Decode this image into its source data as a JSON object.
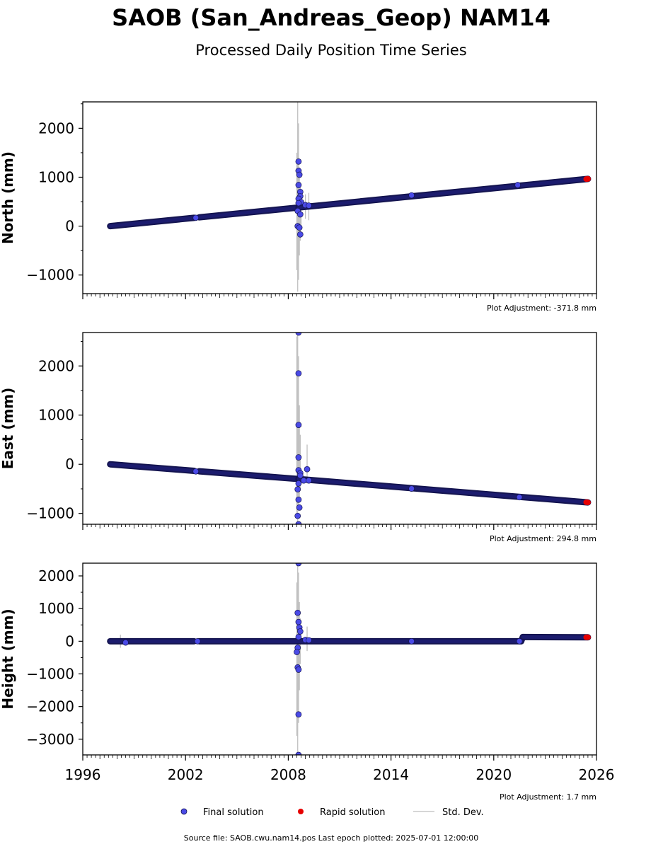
{
  "title": "SAOB (San_Andreas_Geop) NAM14",
  "subtitle": "Processed Daily Position Time Series",
  "legend": {
    "final": "Final solution",
    "rapid": "Rapid solution",
    "std": "Std. Dev."
  },
  "footer": "Source file: SAOB.cwu.nam14.pos  Last epoch plotted: 2025-07-01 12:00:00",
  "colors": {
    "final_fill": "#4a4ae6",
    "final_edge": "#141450",
    "rapid": "#e60000",
    "std": "#b0b0b0",
    "axis": "#000000"
  },
  "chart_data": [
    {
      "type": "scatter",
      "ylabel": "North (mm)",
      "adjustment": "Plot Adjustment: -371.8 mm",
      "xlim": [
        1996,
        2026
      ],
      "ylim": [
        -1380,
        2540
      ],
      "yticks": [
        -1000,
        0,
        1000,
        2000
      ],
      "trend": [
        [
          1997.6,
          0
        ],
        [
          2008.6,
          380
        ],
        [
          2025.5,
          965
        ]
      ],
      "gap": [
        2002.5,
        2002.8
      ],
      "outliers": [
        [
          2002.6,
          170
        ],
        [
          2008.6,
          1320
        ],
        [
          2008.6,
          1130
        ],
        [
          2008.65,
          1050
        ],
        [
          2008.6,
          840
        ],
        [
          2008.7,
          700
        ],
        [
          2008.7,
          610
        ],
        [
          2008.6,
          560
        ],
        [
          2008.75,
          490
        ],
        [
          2008.6,
          470
        ],
        [
          2008.55,
          310
        ],
        [
          2008.7,
          240
        ],
        [
          2008.55,
          0
        ],
        [
          2008.65,
          -30
        ],
        [
          2008.7,
          -170
        ],
        [
          2009.0,
          430
        ],
        [
          2009.2,
          420
        ],
        [
          2015.2,
          630
        ],
        [
          2021.4,
          840
        ]
      ],
      "std_bars": [
        [
          2008.5,
          -900,
          1500
        ],
        [
          2008.55,
          -1340,
          2540
        ],
        [
          2008.6,
          -1100,
          2100
        ],
        [
          2008.65,
          -600,
          1200
        ],
        [
          2008.7,
          -300,
          900
        ],
        [
          2008.75,
          0,
          700
        ],
        [
          2009.0,
          150,
          650
        ],
        [
          2009.2,
          120,
          680
        ]
      ],
      "rapid": [
        [
          2025.4,
          962
        ],
        [
          2025.5,
          965
        ]
      ]
    },
    {
      "type": "scatter",
      "ylabel": "East (mm)",
      "adjustment": "Plot Adjustment: 294.8 mm",
      "xlim": [
        1996,
        2026
      ],
      "ylim": [
        -1220,
        2680
      ],
      "yticks": [
        -1000,
        0,
        1000,
        2000
      ],
      "trend": [
        [
          1997.6,
          0
        ],
        [
          2008.6,
          -300
        ],
        [
          2025.5,
          -775
        ]
      ],
      "gap": [
        2002.5,
        2002.8
      ],
      "outliers": [
        [
          2002.6,
          -145
        ],
        [
          2008.6,
          2680
        ],
        [
          2008.6,
          1850
        ],
        [
          2008.6,
          800
        ],
        [
          2008.6,
          140
        ],
        [
          2008.6,
          -120
        ],
        [
          2008.7,
          -180
        ],
        [
          2008.7,
          -230
        ],
        [
          2008.6,
          -390
        ],
        [
          2008.55,
          -510
        ],
        [
          2008.6,
          -720
        ],
        [
          2008.65,
          -880
        ],
        [
          2008.55,
          -1050
        ],
        [
          2008.6,
          -1220
        ],
        [
          2009.1,
          -100
        ],
        [
          2008.9,
          -330
        ],
        [
          2009.2,
          -330
        ],
        [
          2015.2,
          -495
        ],
        [
          2021.5,
          -670
        ]
      ],
      "std_bars": [
        [
          2008.5,
          -1100,
          2600
        ],
        [
          2008.55,
          -1220,
          2680
        ],
        [
          2008.6,
          -900,
          2200
        ],
        [
          2008.65,
          -700,
          1200
        ],
        [
          2008.7,
          -500,
          600
        ],
        [
          2009.1,
          -300,
          400
        ]
      ],
      "rapid": [
        [
          2025.4,
          -772
        ],
        [
          2025.5,
          -775
        ]
      ]
    },
    {
      "type": "scatter",
      "ylabel": "Height (mm)",
      "adjustment": "Plot Adjustment: 1.7 mm",
      "xlim": [
        1996,
        2026
      ],
      "ylim": [
        -3480,
        2390
      ],
      "yticks": [
        -3000,
        -2000,
        -1000,
        0,
        1000,
        2000
      ],
      "trend": [
        [
          1997.6,
          0
        ],
        [
          2021.6,
          0
        ],
        [
          2021.7,
          130
        ],
        [
          2025.5,
          120
        ]
      ],
      "gap": [
        2002.5,
        2002.8
      ],
      "outliers": [
        [
          2008.6,
          2390
        ],
        [
          2008.55,
          870
        ],
        [
          2008.6,
          590
        ],
        [
          2008.65,
          420
        ],
        [
          2008.7,
          300
        ],
        [
          2008.6,
          130
        ],
        [
          2008.55,
          -200
        ],
        [
          2008.5,
          -330
        ],
        [
          2008.55,
          -800
        ],
        [
          2008.6,
          -870
        ],
        [
          2008.6,
          -2240
        ],
        [
          2008.6,
          -3480
        ],
        [
          2009.0,
          40
        ],
        [
          2009.2,
          30
        ],
        [
          1998.5,
          -40
        ],
        [
          2002.7,
          0
        ],
        [
          2015.2,
          0
        ],
        [
          2021.5,
          0
        ]
      ],
      "std_bars": [
        [
          2008.5,
          -2900,
          1800
        ],
        [
          2008.55,
          -3480,
          2390
        ],
        [
          2008.6,
          -2500,
          2100
        ],
        [
          2008.65,
          -1500,
          1200
        ],
        [
          2008.7,
          -700,
          700
        ],
        [
          2009.1,
          -300,
          450
        ],
        [
          1998.2,
          -200,
          200
        ]
      ],
      "rapid": [
        [
          2025.4,
          120
        ],
        [
          2025.5,
          122
        ]
      ]
    }
  ],
  "x_tick_labels": [
    "1996",
    "2002",
    "2008",
    "2014",
    "2020",
    "2026"
  ]
}
